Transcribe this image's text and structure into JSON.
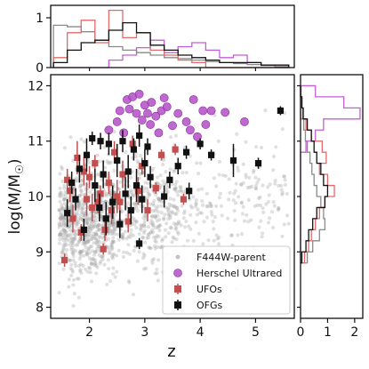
{
  "chart_data": [
    {
      "panel": "main",
      "type": "scatter",
      "xlabel": "z",
      "ylabel_text": "log(M/M",
      "ylabel_sun": "☉",
      "ylabel_close": ")",
      "xlim": [
        1.3,
        5.7
      ],
      "ylim": [
        7.8,
        12.2
      ],
      "xticks": [
        2,
        3,
        4,
        5
      ],
      "yticks": [
        8,
        9,
        10,
        11,
        12
      ],
      "legend": {
        "placement": "lower-right",
        "entries": [
          {
            "label": "F444W-parent",
            "color": "#9e9e9e",
            "marker": "small-circle"
          },
          {
            "label": "Herschel Ultrared",
            "color": "#b24fc4",
            "marker": "circle"
          },
          {
            "label": "UFOs",
            "color": "#c44e4e",
            "marker": "square-errorbar"
          },
          {
            "label": "OFGs",
            "color": "#111111",
            "marker": "square-errorbar"
          }
        ]
      },
      "herschel_ultrared": {
        "color": "#b24fc4",
        "points": [
          [
            2.55,
            11.55
          ],
          [
            2.68,
            11.75
          ],
          [
            2.72,
            11.58
          ],
          [
            2.78,
            11.8
          ],
          [
            2.85,
            11.5
          ],
          [
            2.9,
            11.85
          ],
          [
            2.95,
            11.38
          ],
          [
            3.0,
            11.65
          ],
          [
            3.05,
            11.5
          ],
          [
            3.12,
            11.7
          ],
          [
            3.1,
            11.3
          ],
          [
            3.2,
            11.45
          ],
          [
            3.25,
            11.15
          ],
          [
            3.3,
            11.55
          ],
          [
            3.4,
            11.62
          ],
          [
            3.5,
            11.28
          ],
          [
            3.6,
            11.5
          ],
          [
            3.75,
            11.35
          ],
          [
            3.82,
            11.2
          ],
          [
            3.95,
            11.08
          ],
          [
            4.05,
            11.55
          ],
          [
            4.1,
            11.3
          ],
          [
            3.88,
            11.75
          ],
          [
            4.2,
            11.55
          ],
          [
            2.35,
            11.2
          ],
          [
            2.5,
            11.35
          ],
          [
            2.62,
            11.15
          ],
          [
            3.35,
            11.78
          ],
          [
            4.45,
            11.52
          ],
          [
            4.8,
            11.35
          ]
        ]
      },
      "ufos": {
        "color": "#c44e4e",
        "points": [
          {
            "x": 1.55,
            "y": 8.85,
            "yerr": 0.12
          },
          {
            "x": 1.65,
            "y": 10.1,
            "yerr": 0.2
          },
          {
            "x": 1.7,
            "y": 9.6,
            "yerr": 0.25
          },
          {
            "x": 1.78,
            "y": 10.7,
            "yerr": 0.3
          },
          {
            "x": 1.85,
            "y": 9.35,
            "yerr": 0.15
          },
          {
            "x": 1.9,
            "y": 10.45,
            "yerr": 0.25
          },
          {
            "x": 1.95,
            "y": 9.95,
            "yerr": 0.3
          },
          {
            "x": 2.0,
            "y": 10.35,
            "yerr": 0.2
          },
          {
            "x": 2.05,
            "y": 9.8,
            "yerr": 0.25
          },
          {
            "x": 2.1,
            "y": 10.6,
            "yerr": 0.15
          },
          {
            "x": 2.15,
            "y": 9.9,
            "yerr": 0.2
          },
          {
            "x": 2.2,
            "y": 10.05,
            "yerr": 0.15
          },
          {
            "x": 2.28,
            "y": 9.4,
            "yerr": 0.2
          },
          {
            "x": 2.35,
            "y": 10.25,
            "yerr": 0.2
          },
          {
            "x": 2.4,
            "y": 9.75,
            "yerr": 0.25
          },
          {
            "x": 2.45,
            "y": 10.8,
            "yerr": 0.2
          },
          {
            "x": 2.55,
            "y": 9.9,
            "yerr": 0.2
          },
          {
            "x": 2.6,
            "y": 10.4,
            "yerr": 0.25
          },
          {
            "x": 2.7,
            "y": 9.55,
            "yerr": 0.2
          },
          {
            "x": 2.78,
            "y": 10.95,
            "yerr": 0.15
          },
          {
            "x": 2.88,
            "y": 10.1,
            "yerr": 0.25
          },
          {
            "x": 2.95,
            "y": 10.55,
            "yerr": 0.15
          },
          {
            "x": 3.05,
            "y": 9.75,
            "yerr": 0.2
          },
          {
            "x": 3.2,
            "y": 10.15,
            "yerr": 0.1
          },
          {
            "x": 3.3,
            "y": 10.75,
            "yerr": 0.1
          },
          {
            "x": 3.55,
            "y": 10.85,
            "yerr": 0.1
          },
          {
            "x": 3.7,
            "y": 9.95,
            "yerr": 0.1
          },
          {
            "x": 2.25,
            "y": 9.05,
            "yerr": 0.1
          },
          {
            "x": 1.6,
            "y": 10.3,
            "yerr": 0.2
          },
          {
            "x": 2.5,
            "y": 10.0,
            "yerr": 0.3
          }
        ]
      },
      "ofgs": {
        "color": "#111111",
        "points": [
          {
            "x": 1.6,
            "y": 9.7,
            "yerr": 0.25
          },
          {
            "x": 1.68,
            "y": 10.25,
            "yerr": 0.2
          },
          {
            "x": 1.75,
            "y": 9.95,
            "yerr": 0.2
          },
          {
            "x": 1.82,
            "y": 10.5,
            "yerr": 0.25
          },
          {
            "x": 1.9,
            "y": 9.4,
            "yerr": 0.2
          },
          {
            "x": 1.95,
            "y": 10.75,
            "yerr": 0.3
          },
          {
            "x": 2.05,
            "y": 11.05,
            "yerr": 0.12
          },
          {
            "x": 2.1,
            "y": 10.2,
            "yerr": 0.3
          },
          {
            "x": 2.18,
            "y": 9.8,
            "yerr": 0.25
          },
          {
            "x": 2.25,
            "y": 10.4,
            "yerr": 0.25
          },
          {
            "x": 2.3,
            "y": 9.6,
            "yerr": 0.3
          },
          {
            "x": 2.35,
            "y": 10.95,
            "yerr": 0.2
          },
          {
            "x": 2.42,
            "y": 9.9,
            "yerr": 0.3
          },
          {
            "x": 2.5,
            "y": 10.65,
            "yerr": 0.3
          },
          {
            "x": 2.55,
            "y": 9.5,
            "yerr": 0.25
          },
          {
            "x": 2.6,
            "y": 11.0,
            "yerr": 0.2
          },
          {
            "x": 2.65,
            "y": 10.05,
            "yerr": 0.3
          },
          {
            "x": 2.7,
            "y": 10.45,
            "yerr": 0.3
          },
          {
            "x": 2.75,
            "y": 9.75,
            "yerr": 0.25
          },
          {
            "x": 2.8,
            "y": 10.85,
            "yerr": 0.2
          },
          {
            "x": 2.85,
            "y": 10.2,
            "yerr": 0.3
          },
          {
            "x": 2.9,
            "y": 11.1,
            "yerr": 0.2
          },
          {
            "x": 2.95,
            "y": 9.95,
            "yerr": 0.25
          },
          {
            "x": 3.0,
            "y": 10.6,
            "yerr": 0.25
          },
          {
            "x": 3.05,
            "y": 10.9,
            "yerr": 0.15
          },
          {
            "x": 3.1,
            "y": 10.35,
            "yerr": 0.2
          },
          {
            "x": 2.9,
            "y": 9.15,
            "yerr": 0.1
          },
          {
            "x": 3.45,
            "y": 10.3,
            "yerr": 0.15
          },
          {
            "x": 3.6,
            "y": 10.55,
            "yerr": 0.15
          },
          {
            "x": 3.8,
            "y": 10.1,
            "yerr": 0.15
          },
          {
            "x": 3.75,
            "y": 10.8,
            "yerr": 0.12
          },
          {
            "x": 4.0,
            "y": 10.95,
            "yerr": 0.1
          },
          {
            "x": 4.2,
            "y": 10.75,
            "yerr": 0.1
          },
          {
            "x": 4.6,
            "y": 10.65,
            "yerr": 0.3
          },
          {
            "x": 5.05,
            "y": 10.6,
            "yerr": 0.1
          },
          {
            "x": 5.45,
            "y": 11.55,
            "yerr": 0.08
          },
          {
            "x": 3.35,
            "y": 10.0,
            "yerr": 0.2
          },
          {
            "x": 2.2,
            "y": 11.0,
            "yerr": 0.15
          }
        ]
      },
      "parent": {
        "color": "#9e9e9e",
        "approx_count": 1300,
        "distribution_note_x_range": [
          1.4,
          5.6
        ],
        "y_center_by_density": 9.6
      }
    },
    {
      "panel": "top-histogram",
      "type": "histogram",
      "xlim": [
        1.3,
        5.7
      ],
      "ylim": [
        0,
        1.25
      ],
      "yticks": [
        0,
        1
      ],
      "bin_edges": [
        1.35,
        1.6,
        1.85,
        2.1,
        2.35,
        2.6,
        2.85,
        3.1,
        3.35,
        3.6,
        3.85,
        4.1,
        4.35,
        4.6,
        4.85,
        5.1,
        5.35,
        5.6
      ],
      "series": [
        {
          "name": "F444W-parent",
          "color": "#8a8a8a",
          "values": [
            0.85,
            0.82,
            0.72,
            0.55,
            0.42,
            0.35,
            0.3,
            0.25,
            0.2,
            0.18,
            0.15,
            0.12,
            0.1,
            0.08,
            0.06,
            0.04,
            0.02
          ]
        },
        {
          "name": "Herschel Ultrared",
          "color": "#c35fd6",
          "values": [
            0,
            0,
            0,
            0,
            0.15,
            0.25,
            0.4,
            0.55,
            0.3,
            0.42,
            0.5,
            0.35,
            0.2,
            0.25,
            0.1,
            0.05,
            0
          ]
        },
        {
          "name": "UFOs",
          "color": "#e06a6a",
          "values": [
            0.2,
            0.7,
            0.95,
            0.5,
            1.15,
            0.6,
            0.7,
            0.35,
            0.25,
            0.15,
            0.1,
            0.0,
            0.0,
            0.0,
            0,
            0,
            0
          ]
        },
        {
          "name": "OFGs",
          "color": "#111111",
          "values": [
            0.1,
            0.35,
            0.5,
            0.55,
            0.75,
            0.9,
            0.7,
            0.45,
            0.35,
            0.25,
            0.2,
            0.15,
            0.1,
            0.1,
            0.1,
            0.05,
            0.05
          ]
        }
      ]
    },
    {
      "panel": "right-histogram",
      "type": "histogram",
      "orientation": "horizontal",
      "xlim": [
        0,
        2.3
      ],
      "xticks": [
        0,
        1,
        2
      ],
      "ylim": [
        7.8,
        12.2
      ],
      "bin_edges": [
        8.8,
        9.0,
        9.2,
        9.4,
        9.6,
        9.8,
        10.0,
        10.2,
        10.4,
        10.6,
        10.8,
        11.0,
        11.2,
        11.4,
        11.6,
        11.8,
        12.0
      ],
      "series": [
        {
          "name": "F444W-parent",
          "color": "#8a8a8a",
          "values": [
            0.25,
            0.45,
            0.7,
            0.9,
            0.85,
            0.75,
            0.6,
            0.5,
            0.42,
            0.35,
            0.25,
            0.18,
            0.12,
            0.08,
            0.05,
            0.02
          ]
        },
        {
          "name": "Herschel Ultrared",
          "color": "#c35fd6",
          "values": [
            0,
            0,
            0,
            0,
            0,
            0,
            0,
            0,
            0,
            0,
            0.2,
            0.55,
            0.85,
            2.2,
            1.6,
            0.55
          ]
        },
        {
          "name": "UFOs",
          "color": "#e06a6a",
          "values": [
            0.15,
            0.3,
            0.4,
            0.55,
            0.7,
            0.9,
            1.25,
            1.0,
            0.7,
            0.95,
            0.8,
            0.4,
            0.2,
            0,
            0,
            0
          ]
        },
        {
          "name": "OFGs",
          "color": "#111111",
          "values": [
            0.05,
            0.2,
            0.3,
            0.45,
            0.6,
            0.9,
            1.0,
            0.85,
            0.75,
            0.6,
            0.5,
            0.4,
            0.25,
            0.1,
            0.05,
            0
          ]
        }
      ]
    }
  ]
}
